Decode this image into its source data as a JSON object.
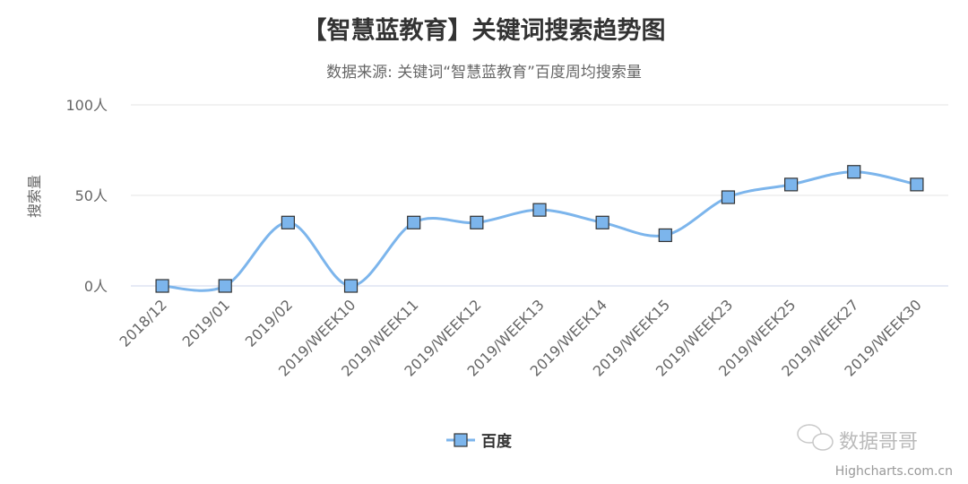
{
  "chart_data": {
    "type": "line",
    "smooth": true,
    "title": "【智慧蓝教育】关键词搜索趋势图",
    "subtitle": "数据来源: 关键词“智慧蓝教育”百度周均搜索量",
    "ylabel": "搜索量",
    "xlabel": "",
    "ylim": [
      0,
      100
    ],
    "yticks": [
      0,
      50,
      100
    ],
    "ytick_labels": [
      "0人",
      "50人",
      "100人"
    ],
    "grid": true,
    "legend_position": "bottom",
    "categories": [
      "2018/12",
      "2019/01",
      "2019/02",
      "2019/WEEK10",
      "2019/WEEK11",
      "2019/WEEK12",
      "2019/WEEK13",
      "2019/WEEK14",
      "2019/WEEK15",
      "2019/WEEK23",
      "2019/WEEK25",
      "2019/WEEK27",
      "2019/WEEK30"
    ],
    "series": [
      {
        "name": "百度",
        "values": [
          0,
          0,
          35,
          0,
          35,
          35,
          42,
          35,
          28,
          49,
          56,
          63,
          56
        ],
        "color": "#7cb5ec",
        "marker": "square"
      }
    ]
  },
  "watermark": {
    "text": "数据哥哥",
    "icon": "wechat-icon"
  },
  "credits": "Highcharts.com.cn"
}
